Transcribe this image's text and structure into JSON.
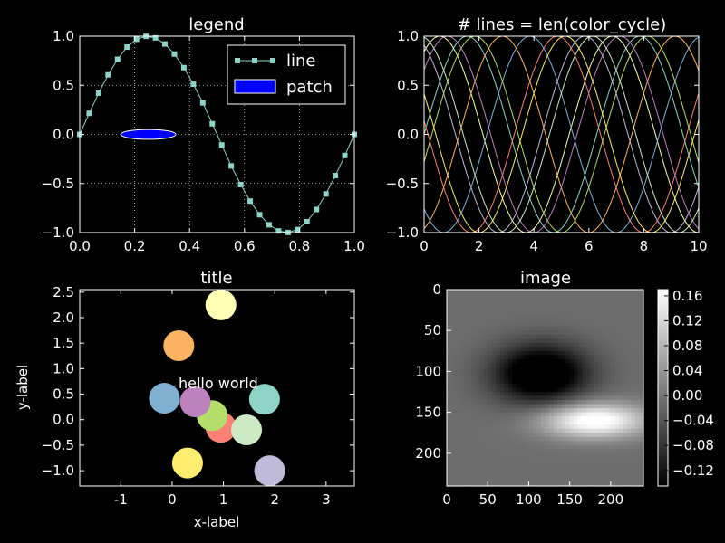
{
  "figure": {
    "background": "#000000",
    "foreground": "#ffffff"
  },
  "chart_data": [
    {
      "id": "legend",
      "type": "line",
      "title": "legend",
      "xlim": [
        0,
        1.0
      ],
      "ylim": [
        -1.0,
        1.0
      ],
      "xticks": [
        "0.0",
        "0.2",
        "0.4",
        "0.6",
        "0.8",
        "1.0"
      ],
      "yticks": [
        "-1.0",
        "-0.5",
        "0.0",
        "0.5",
        "1.0"
      ],
      "grid": true,
      "legend_position": "top-right",
      "series": [
        {
          "name": "line",
          "color": "#8dd3c7",
          "marker": "square",
          "x": [
            0,
            0.0345,
            0.069,
            0.1034,
            0.1379,
            0.1724,
            0.2069,
            0.2414,
            0.2759,
            0.3103,
            0.3448,
            0.3793,
            0.4138,
            0.4483,
            0.4828,
            0.5172,
            0.5517,
            0.5862,
            0.6207,
            0.6552,
            0.6897,
            0.7241,
            0.7586,
            0.7931,
            0.8276,
            0.8621,
            0.8966,
            0.931,
            0.9655,
            1.0
          ],
          "y": [
            0,
            0.2147,
            0.4199,
            0.6062,
            0.765,
            0.8896,
            0.969,
            0.9988,
            0.9829,
            0.9206,
            0.8183,
            0.6795,
            0.511,
            0.3212,
            0.1078,
            -0.1078,
            -0.3212,
            -0.511,
            -0.6795,
            -0.8183,
            -0.9206,
            -0.9829,
            -0.9988,
            -0.969,
            -0.8896,
            -0.765,
            -0.6062,
            -0.4199,
            -0.2147,
            0
          ]
        }
      ],
      "patch": {
        "name": "patch",
        "color": "#0000ff",
        "center": [
          0.25,
          0.0
        ],
        "width": 0.2,
        "height": 0.2
      }
    },
    {
      "id": "color-cycle",
      "type": "line",
      "title": "# lines = len(color_cycle)",
      "xlim": [
        0,
        10
      ],
      "ylim": [
        -1.0,
        1.0
      ],
      "xticks": [
        "0",
        "2",
        "4",
        "6",
        "8",
        "10"
      ],
      "yticks": [
        "-1.0",
        "-0.5",
        "0.0",
        "0.5",
        "1.0"
      ],
      "function": "sin(x + phase)",
      "colors": [
        "#8dd3c7",
        "#feffb3",
        "#bfbbd9",
        "#fa8174",
        "#81b1d2",
        "#fdb462",
        "#b3de69",
        "#bc82bd",
        "#ccebc4",
        "#ffed6f"
      ],
      "phases": [
        0,
        1,
        2,
        3,
        4,
        5,
        6,
        7,
        8,
        9
      ]
    },
    {
      "id": "scatter",
      "type": "scatter",
      "title": "title",
      "xlabel": "x-label",
      "ylabel": "y-label",
      "xlim": [
        -1.8,
        3.55
      ],
      "ylim": [
        -1.3,
        2.55
      ],
      "xticks": [
        "-1",
        "0",
        "1",
        "2",
        "3"
      ],
      "yticks": [
        "-1.0",
        "-0.5",
        "0.0",
        "0.5",
        "1.0",
        "1.5",
        "2.0",
        "2.5"
      ],
      "annotation": {
        "text": "hello world",
        "x": 0.9,
        "y": 0.62
      },
      "points": [
        {
          "x": 1.8,
          "y": 0.4,
          "color": "#8dd3c7"
        },
        {
          "x": 0.95,
          "y": 2.25,
          "color": "#feffb3"
        },
        {
          "x": 1.9,
          "y": -1.0,
          "color": "#bfbbd9"
        },
        {
          "x": 0.95,
          "y": -0.15,
          "color": "#fa8174"
        },
        {
          "x": -0.15,
          "y": 0.42,
          "color": "#81b1d2"
        },
        {
          "x": 0.13,
          "y": 1.45,
          "color": "#fdb462"
        },
        {
          "x": 0.78,
          "y": 0.08,
          "color": "#b3de69"
        },
        {
          "x": 0.45,
          "y": 0.35,
          "color": "#bc82bd"
        },
        {
          "x": 1.45,
          "y": -0.2,
          "color": "#ccebc4"
        },
        {
          "x": 0.3,
          "y": -0.85,
          "color": "#ffed6f"
        }
      ]
    },
    {
      "id": "image",
      "type": "heatmap",
      "title": "image",
      "xlim": [
        0,
        240
      ],
      "ylim": [
        240,
        0
      ],
      "xticks": [
        "0",
        "50",
        "100",
        "150",
        "200"
      ],
      "yticks": [
        "0",
        "50",
        "100",
        "150",
        "200"
      ],
      "colormap": "gray",
      "clim": [
        -0.145,
        0.17
      ],
      "colorbar_ticks": [
        "0.16",
        "0.12",
        "0.08",
        "0.04",
        "0.00",
        "−0.04",
        "−0.08",
        "−0.12"
      ],
      "blobs": [
        {
          "x": 115,
          "y": 103,
          "sx": 40,
          "sy": 25,
          "amp": -0.2
        },
        {
          "x": 180,
          "y": 160,
          "sx": 45,
          "sy": 15,
          "amp": 0.2
        }
      ],
      "baseline": -0.01
    }
  ]
}
